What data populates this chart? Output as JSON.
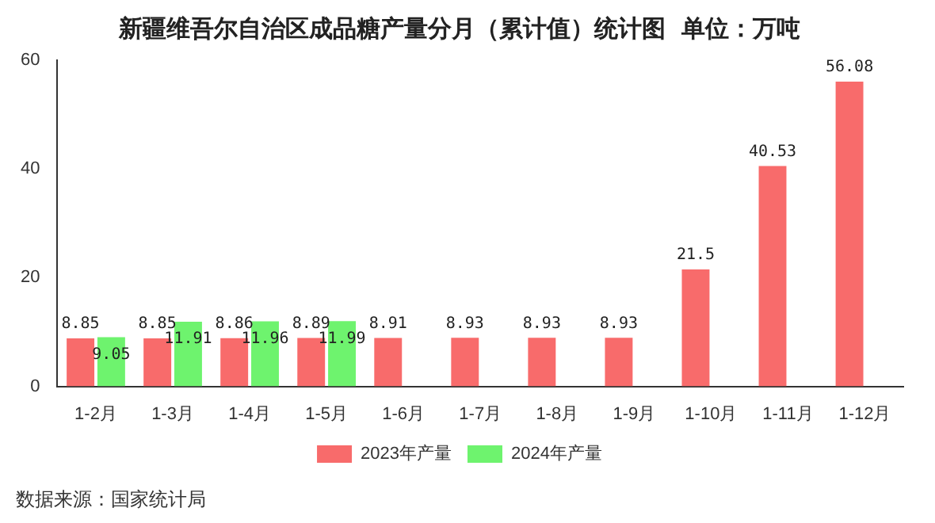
{
  "chart_data": {
    "type": "bar",
    "title": "新疆维吾尔自治区成品糖产量分月（累计值）统计图  单位：万吨",
    "categories": [
      "1-2月",
      "1-3月",
      "1-4月",
      "1-5月",
      "1-6月",
      "1-7月",
      "1-8月",
      "1-9月",
      "1-10月",
      "1-11月",
      "1-12月"
    ],
    "series": [
      {
        "name": "2023年产量",
        "color": "#f86b6b",
        "values": [
          8.85,
          8.85,
          8.86,
          8.89,
          8.91,
          8.93,
          8.93,
          8.93,
          21.5,
          40.53,
          56.08
        ]
      },
      {
        "name": "2024年产量",
        "color": "#6ef36e",
        "values": [
          9.05,
          11.91,
          11.96,
          11.99,
          null,
          null,
          null,
          null,
          null,
          null,
          null
        ]
      }
    ],
    "ylim": [
      0,
      60
    ],
    "yticks": [
      0,
      20,
      40,
      60
    ],
    "grid": false,
    "legend": "bottom",
    "data_labels": true,
    "annotations": [
      "数据来源：国家统计局"
    ]
  }
}
